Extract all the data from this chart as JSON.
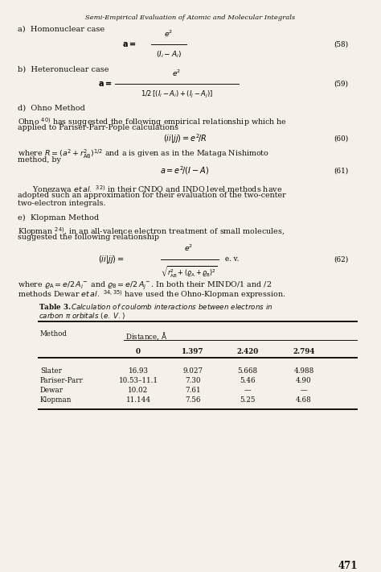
{
  "title": "Semi-Empirical Evaluation of Atomic and Molecular Integrals",
  "page_number": "471",
  "background_color": "#f5f0e8",
  "text_color": "#1a1008",
  "table": {
    "col_values": [
      "0",
      "1.397",
      "2.420",
      "2.794"
    ],
    "rows": [
      [
        "Slater",
        "16.93",
        "9.027",
        "5.668",
        "4.988"
      ],
      [
        "Pariser-Parr",
        "10.53–11.1",
        "7.30",
        "5.46",
        "4.90"
      ],
      [
        "Dewar",
        "10.02",
        "7.61",
        "—",
        "—"
      ],
      [
        "Klopman",
        "11.144",
        "7.56",
        "5.25",
        "4.68"
      ]
    ]
  }
}
